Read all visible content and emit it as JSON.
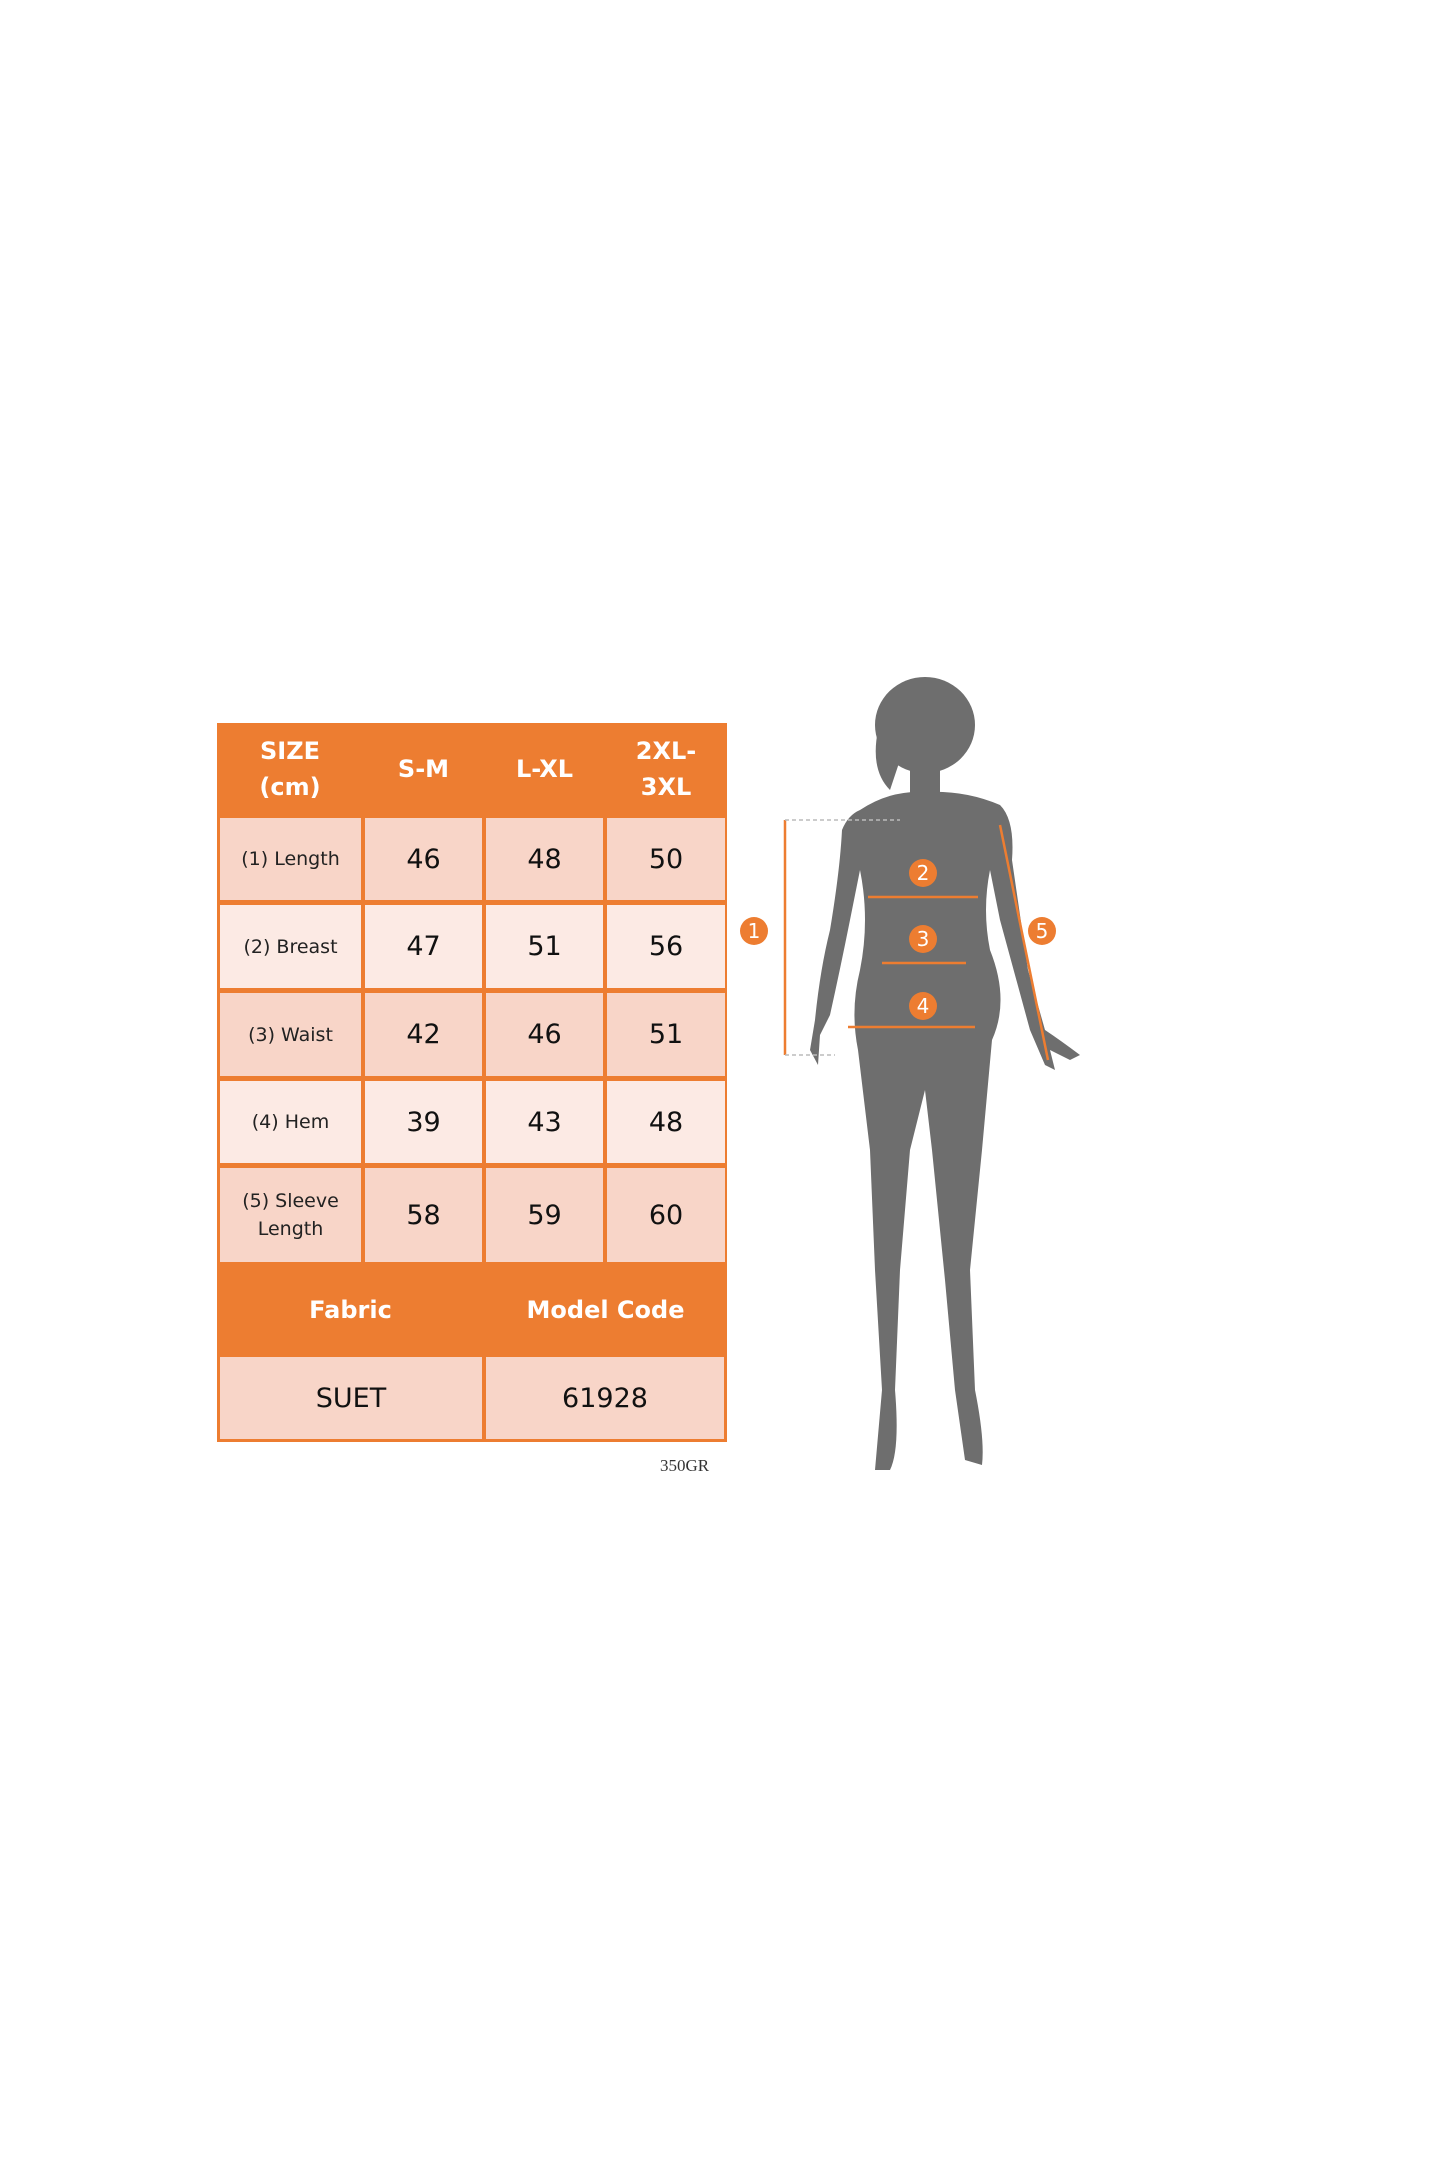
{
  "table": {
    "header": [
      "SIZE\n(cm)",
      "S-M",
      "L-XL",
      "2XL-\n3XL"
    ],
    "rows": [
      {
        "label": "(1) Length",
        "values": [
          "46",
          "48",
          "50"
        ]
      },
      {
        "label": "(2) Breast",
        "values": [
          "47",
          "51",
          "56"
        ]
      },
      {
        "label": "(3) Waist",
        "values": [
          "42",
          "46",
          "51"
        ]
      },
      {
        "label": "(4) Hem",
        "values": [
          "39",
          "43",
          "48"
        ]
      },
      {
        "label": "(5) Sleeve\nLength",
        "values": [
          "58",
          "59",
          "60"
        ]
      }
    ],
    "fabric_label": "Fabric",
    "model_code_label": "Model Code",
    "fabric_value": "SUET",
    "model_code_value": "61928"
  },
  "footnote": "350GR",
  "markers": [
    "1",
    "2",
    "3",
    "4",
    "5"
  ],
  "colors": {
    "accent": "#ED7D31",
    "silhouette": "#6E6E6E",
    "cell_dark": "#F8D5C8",
    "cell_light": "#FCEAE4"
  }
}
